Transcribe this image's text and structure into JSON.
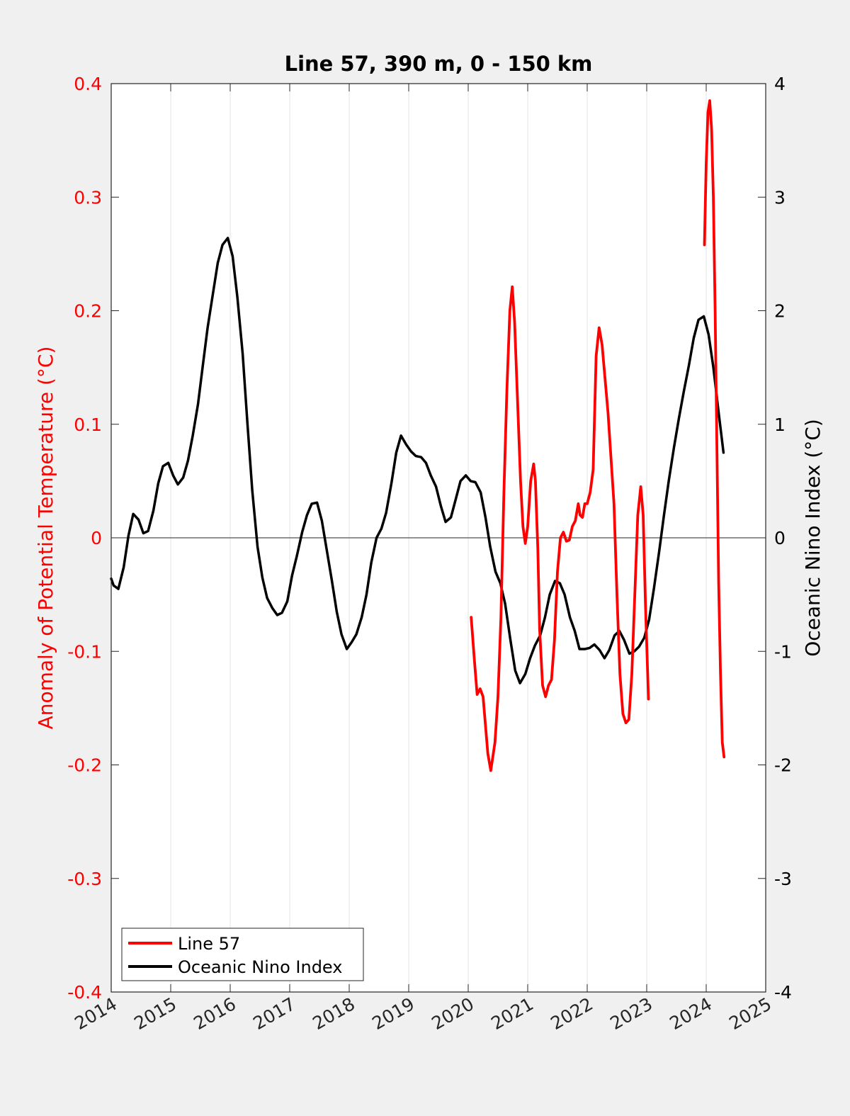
{
  "chart_data": {
    "type": "line",
    "title": "Line 57, 390 m, 0 - 150 km",
    "ylabel_left": "Anomaly of Potential Temperature (°C)",
    "ylabel_right": "Oceanic Nino Index (°C)",
    "xlabel": "",
    "xlim": [
      2014,
      2025
    ],
    "ylim_left": [
      -0.4,
      0.4
    ],
    "ylim_right": [
      -4,
      4
    ],
    "xticks": [
      "2014",
      "2015",
      "2016",
      "2017",
      "2018",
      "2019",
      "2020",
      "2021",
      "2022",
      "2023",
      "2024",
      "2025"
    ],
    "yticks_left": [
      "-0.4",
      "-0.3",
      "-0.2",
      "-0.1",
      "0",
      "0.1",
      "0.2",
      "0.3",
      "0.4"
    ],
    "yticks_right": [
      "-4",
      "-3",
      "-2",
      "-1",
      "0",
      "1",
      "2",
      "3",
      "4"
    ],
    "grid": "vertical",
    "zero_line": true,
    "legend_position": "bottom-left",
    "colors": {
      "line57": "#ff0000",
      "oni": "#000000",
      "left_axis": "#ff0000",
      "right_axis": "#000000"
    },
    "series": [
      {
        "name": "Line 57",
        "axis": "left",
        "segments": [
          [
            [
              2020.05,
              -0.07
            ],
            [
              2020.1,
              -0.105
            ],
            [
              2020.15,
              -0.138
            ],
            [
              2020.2,
              -0.133
            ],
            [
              2020.25,
              -0.14
            ],
            [
              2020.33,
              -0.19
            ],
            [
              2020.38,
              -0.205
            ],
            [
              2020.45,
              -0.18
            ],
            [
              2020.5,
              -0.14
            ],
            [
              2020.55,
              -0.07
            ],
            [
              2020.6,
              0.04
            ],
            [
              2020.65,
              0.13
            ],
            [
              2020.7,
              0.2
            ],
            [
              2020.74,
              0.221
            ],
            [
              2020.78,
              0.19
            ],
            [
              2020.83,
              0.12
            ],
            [
              2020.88,
              0.05
            ],
            [
              2020.92,
              0.01
            ],
            [
              2020.96,
              -0.005
            ],
            [
              2021.0,
              0.01
            ],
            [
              2021.05,
              0.05
            ],
            [
              2021.1,
              0.065
            ],
            [
              2021.13,
              0.05
            ],
            [
              2021.17,
              -0.01
            ],
            [
              2021.2,
              -0.08
            ],
            [
              2021.25,
              -0.13
            ],
            [
              2021.3,
              -0.14
            ],
            [
              2021.35,
              -0.13
            ],
            [
              2021.4,
              -0.125
            ],
            [
              2021.45,
              -0.09
            ],
            [
              2021.5,
              -0.03
            ],
            [
              2021.55,
              0.0
            ],
            [
              2021.6,
              0.005
            ],
            [
              2021.65,
              -0.003
            ],
            [
              2021.7,
              -0.002
            ],
            [
              2021.75,
              0.01
            ],
            [
              2021.8,
              0.015
            ],
            [
              2021.85,
              0.03
            ],
            [
              2021.88,
              0.02
            ],
            [
              2021.92,
              0.018
            ],
            [
              2021.96,
              0.03
            ],
            [
              2022.0,
              0.03
            ],
            [
              2022.05,
              0.04
            ],
            [
              2022.1,
              0.06
            ],
            [
              2022.15,
              0.16
            ],
            [
              2022.2,
              0.185
            ],
            [
              2022.25,
              0.17
            ],
            [
              2022.3,
              0.14
            ],
            [
              2022.35,
              0.11
            ],
            [
              2022.4,
              0.07
            ],
            [
              2022.45,
              0.03
            ],
            [
              2022.5,
              -0.05
            ],
            [
              2022.55,
              -0.12
            ],
            [
              2022.6,
              -0.155
            ],
            [
              2022.65,
              -0.163
            ],
            [
              2022.7,
              -0.16
            ],
            [
              2022.75,
              -0.12
            ],
            [
              2022.8,
              -0.05
            ],
            [
              2022.85,
              0.02
            ],
            [
              2022.9,
              0.045
            ],
            [
              2022.94,
              0.02
            ],
            [
              2022.98,
              -0.06
            ],
            [
              2023.03,
              -0.142
            ]
          ],
          [
            [
              2023.97,
              0.258
            ],
            [
              2024.0,
              0.33
            ],
            [
              2024.03,
              0.375
            ],
            [
              2024.06,
              0.385
            ],
            [
              2024.09,
              0.36
            ],
            [
              2024.12,
              0.3
            ],
            [
              2024.15,
              0.2
            ],
            [
              2024.18,
              0.08
            ],
            [
              2024.21,
              -0.04
            ],
            [
              2024.24,
              -0.12
            ],
            [
              2024.27,
              -0.18
            ],
            [
              2024.3,
              -0.193
            ]
          ]
        ]
      },
      {
        "name": "Oceanic Nino Index",
        "axis": "right",
        "points": [
          [
            2014.0,
            -0.36
          ],
          [
            2014.04,
            -0.42
          ],
          [
            2014.12,
            -0.45
          ],
          [
            2014.21,
            -0.26
          ],
          [
            2014.29,
            0.02
          ],
          [
            2014.37,
            0.21
          ],
          [
            2014.46,
            0.16
          ],
          [
            2014.54,
            0.04
          ],
          [
            2014.62,
            0.06
          ],
          [
            2014.71,
            0.24
          ],
          [
            2014.79,
            0.48
          ],
          [
            2014.87,
            0.63
          ],
          [
            2014.96,
            0.66
          ],
          [
            2015.04,
            0.55
          ],
          [
            2015.12,
            0.47
          ],
          [
            2015.21,
            0.53
          ],
          [
            2015.29,
            0.68
          ],
          [
            2015.37,
            0.9
          ],
          [
            2015.46,
            1.18
          ],
          [
            2015.54,
            1.52
          ],
          [
            2015.62,
            1.85
          ],
          [
            2015.71,
            2.15
          ],
          [
            2015.79,
            2.42
          ],
          [
            2015.87,
            2.58
          ],
          [
            2015.96,
            2.64
          ],
          [
            2016.04,
            2.48
          ],
          [
            2016.12,
            2.12
          ],
          [
            2016.21,
            1.62
          ],
          [
            2016.29,
            1.0
          ],
          [
            2016.37,
            0.42
          ],
          [
            2016.46,
            -0.08
          ],
          [
            2016.54,
            -0.35
          ],
          [
            2016.62,
            -0.53
          ],
          [
            2016.71,
            -0.62
          ],
          [
            2016.79,
            -0.68
          ],
          [
            2016.87,
            -0.66
          ],
          [
            2016.96,
            -0.56
          ],
          [
            2017.04,
            -0.33
          ],
          [
            2017.12,
            -0.16
          ],
          [
            2017.21,
            0.05
          ],
          [
            2017.29,
            0.2
          ],
          [
            2017.37,
            0.3
          ],
          [
            2017.46,
            0.31
          ],
          [
            2017.54,
            0.15
          ],
          [
            2017.62,
            -0.1
          ],
          [
            2017.71,
            -0.38
          ],
          [
            2017.79,
            -0.65
          ],
          [
            2017.87,
            -0.85
          ],
          [
            2017.96,
            -0.98
          ],
          [
            2018.04,
            -0.92
          ],
          [
            2018.12,
            -0.85
          ],
          [
            2018.21,
            -0.7
          ],
          [
            2018.29,
            -0.5
          ],
          [
            2018.37,
            -0.22
          ],
          [
            2018.46,
            0.0
          ],
          [
            2018.54,
            0.08
          ],
          [
            2018.62,
            0.22
          ],
          [
            2018.71,
            0.48
          ],
          [
            2018.79,
            0.75
          ],
          [
            2018.87,
            0.9
          ],
          [
            2018.96,
            0.82
          ],
          [
            2019.04,
            0.76
          ],
          [
            2019.12,
            0.72
          ],
          [
            2019.21,
            0.71
          ],
          [
            2019.29,
            0.66
          ],
          [
            2019.37,
            0.55
          ],
          [
            2019.46,
            0.45
          ],
          [
            2019.54,
            0.28
          ],
          [
            2019.62,
            0.14
          ],
          [
            2019.71,
            0.18
          ],
          [
            2019.79,
            0.34
          ],
          [
            2019.87,
            0.5
          ],
          [
            2019.96,
            0.55
          ],
          [
            2020.04,
            0.5
          ],
          [
            2020.12,
            0.49
          ],
          [
            2020.21,
            0.4
          ],
          [
            2020.29,
            0.18
          ],
          [
            2020.37,
            -0.08
          ],
          [
            2020.46,
            -0.3
          ],
          [
            2020.54,
            -0.4
          ],
          [
            2020.62,
            -0.58
          ],
          [
            2020.71,
            -0.9
          ],
          [
            2020.79,
            -1.17
          ],
          [
            2020.87,
            -1.28
          ],
          [
            2020.96,
            -1.2
          ],
          [
            2021.04,
            -1.06
          ],
          [
            2021.12,
            -0.95
          ],
          [
            2021.21,
            -0.86
          ],
          [
            2021.29,
            -0.7
          ],
          [
            2021.37,
            -0.5
          ],
          [
            2021.46,
            -0.38
          ],
          [
            2021.54,
            -0.4
          ],
          [
            2021.62,
            -0.5
          ],
          [
            2021.71,
            -0.7
          ],
          [
            2021.79,
            -0.82
          ],
          [
            2021.87,
            -0.98
          ],
          [
            2021.96,
            -0.98
          ],
          [
            2022.04,
            -0.97
          ],
          [
            2022.12,
            -0.94
          ],
          [
            2022.21,
            -0.99
          ],
          [
            2022.29,
            -1.06
          ],
          [
            2022.37,
            -0.99
          ],
          [
            2022.46,
            -0.86
          ],
          [
            2022.54,
            -0.82
          ],
          [
            2022.62,
            -0.9
          ],
          [
            2022.71,
            -1.02
          ],
          [
            2022.79,
            -1.0
          ],
          [
            2022.87,
            -0.96
          ],
          [
            2022.96,
            -0.88
          ],
          [
            2023.04,
            -0.72
          ],
          [
            2023.12,
            -0.45
          ],
          [
            2023.21,
            -0.12
          ],
          [
            2023.29,
            0.2
          ],
          [
            2023.37,
            0.5
          ],
          [
            2023.46,
            0.8
          ],
          [
            2023.54,
            1.05
          ],
          [
            2023.62,
            1.28
          ],
          [
            2023.71,
            1.52
          ],
          [
            2023.79,
            1.76
          ],
          [
            2023.87,
            1.92
          ],
          [
            2023.96,
            1.95
          ],
          [
            2024.04,
            1.79
          ],
          [
            2024.12,
            1.5
          ],
          [
            2024.21,
            1.1
          ],
          [
            2024.29,
            0.75
          ]
        ]
      }
    ]
  }
}
